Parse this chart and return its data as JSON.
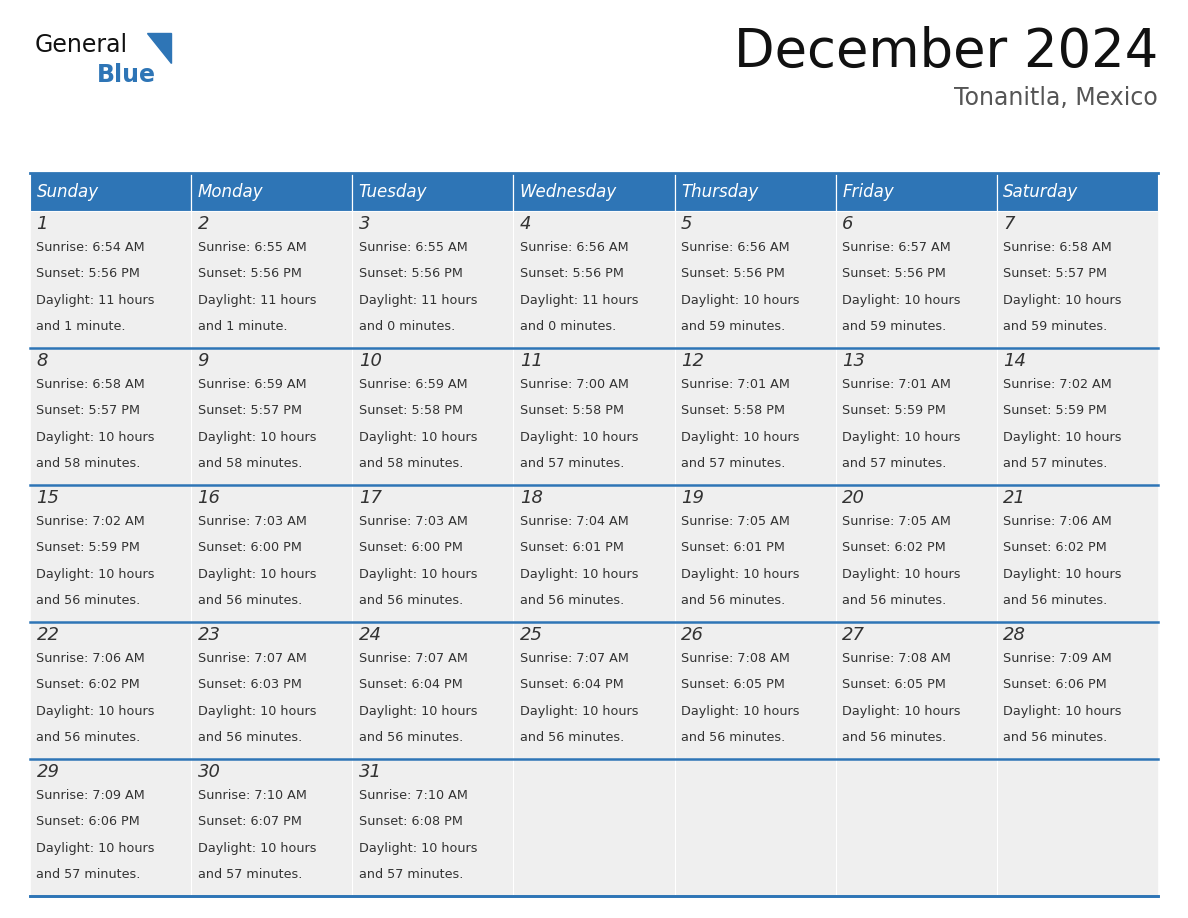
{
  "title": "December 2024",
  "subtitle": "Tonanitla, Mexico",
  "header_color": "#2E75B6",
  "header_text_color": "#FFFFFF",
  "day_names": [
    "Sunday",
    "Monday",
    "Tuesday",
    "Wednesday",
    "Thursday",
    "Friday",
    "Saturday"
  ],
  "background_color": "#FFFFFF",
  "cell_bg_color": "#EFEFEF",
  "border_color": "#2E75B6",
  "row_line_color": "#2E75B6",
  "day_num_color": "#333333",
  "text_color": "#333333",
  "calendar": [
    [
      {
        "day": 1,
        "sunrise": "6:54 AM",
        "sunset": "5:56 PM",
        "daylight_hours": 11,
        "daylight_min_text": "1 minute."
      },
      {
        "day": 2,
        "sunrise": "6:55 AM",
        "sunset": "5:56 PM",
        "daylight_hours": 11,
        "daylight_min_text": "1 minute."
      },
      {
        "day": 3,
        "sunrise": "6:55 AM",
        "sunset": "5:56 PM",
        "daylight_hours": 11,
        "daylight_min_text": "0 minutes."
      },
      {
        "day": 4,
        "sunrise": "6:56 AM",
        "sunset": "5:56 PM",
        "daylight_hours": 11,
        "daylight_min_text": "0 minutes."
      },
      {
        "day": 5,
        "sunrise": "6:56 AM",
        "sunset": "5:56 PM",
        "daylight_hours": 10,
        "daylight_min_text": "59 minutes."
      },
      {
        "day": 6,
        "sunrise": "6:57 AM",
        "sunset": "5:56 PM",
        "daylight_hours": 10,
        "daylight_min_text": "59 minutes."
      },
      {
        "day": 7,
        "sunrise": "6:58 AM",
        "sunset": "5:57 PM",
        "daylight_hours": 10,
        "daylight_min_text": "59 minutes."
      }
    ],
    [
      {
        "day": 8,
        "sunrise": "6:58 AM",
        "sunset": "5:57 PM",
        "daylight_hours": 10,
        "daylight_min_text": "58 minutes."
      },
      {
        "day": 9,
        "sunrise": "6:59 AM",
        "sunset": "5:57 PM",
        "daylight_hours": 10,
        "daylight_min_text": "58 minutes."
      },
      {
        "day": 10,
        "sunrise": "6:59 AM",
        "sunset": "5:58 PM",
        "daylight_hours": 10,
        "daylight_min_text": "58 minutes."
      },
      {
        "day": 11,
        "sunrise": "7:00 AM",
        "sunset": "5:58 PM",
        "daylight_hours": 10,
        "daylight_min_text": "57 minutes."
      },
      {
        "day": 12,
        "sunrise": "7:01 AM",
        "sunset": "5:58 PM",
        "daylight_hours": 10,
        "daylight_min_text": "57 minutes."
      },
      {
        "day": 13,
        "sunrise": "7:01 AM",
        "sunset": "5:59 PM",
        "daylight_hours": 10,
        "daylight_min_text": "57 minutes."
      },
      {
        "day": 14,
        "sunrise": "7:02 AM",
        "sunset": "5:59 PM",
        "daylight_hours": 10,
        "daylight_min_text": "57 minutes."
      }
    ],
    [
      {
        "day": 15,
        "sunrise": "7:02 AM",
        "sunset": "5:59 PM",
        "daylight_hours": 10,
        "daylight_min_text": "56 minutes."
      },
      {
        "day": 16,
        "sunrise": "7:03 AM",
        "sunset": "6:00 PM",
        "daylight_hours": 10,
        "daylight_min_text": "56 minutes."
      },
      {
        "day": 17,
        "sunrise": "7:03 AM",
        "sunset": "6:00 PM",
        "daylight_hours": 10,
        "daylight_min_text": "56 minutes."
      },
      {
        "day": 18,
        "sunrise": "7:04 AM",
        "sunset": "6:01 PM",
        "daylight_hours": 10,
        "daylight_min_text": "56 minutes."
      },
      {
        "day": 19,
        "sunrise": "7:05 AM",
        "sunset": "6:01 PM",
        "daylight_hours": 10,
        "daylight_min_text": "56 minutes."
      },
      {
        "day": 20,
        "sunrise": "7:05 AM",
        "sunset": "6:02 PM",
        "daylight_hours": 10,
        "daylight_min_text": "56 minutes."
      },
      {
        "day": 21,
        "sunrise": "7:06 AM",
        "sunset": "6:02 PM",
        "daylight_hours": 10,
        "daylight_min_text": "56 minutes."
      }
    ],
    [
      {
        "day": 22,
        "sunrise": "7:06 AM",
        "sunset": "6:02 PM",
        "daylight_hours": 10,
        "daylight_min_text": "56 minutes."
      },
      {
        "day": 23,
        "sunrise": "7:07 AM",
        "sunset": "6:03 PM",
        "daylight_hours": 10,
        "daylight_min_text": "56 minutes."
      },
      {
        "day": 24,
        "sunrise": "7:07 AM",
        "sunset": "6:04 PM",
        "daylight_hours": 10,
        "daylight_min_text": "56 minutes."
      },
      {
        "day": 25,
        "sunrise": "7:07 AM",
        "sunset": "6:04 PM",
        "daylight_hours": 10,
        "daylight_min_text": "56 minutes."
      },
      {
        "day": 26,
        "sunrise": "7:08 AM",
        "sunset": "6:05 PM",
        "daylight_hours": 10,
        "daylight_min_text": "56 minutes."
      },
      {
        "day": 27,
        "sunrise": "7:08 AM",
        "sunset": "6:05 PM",
        "daylight_hours": 10,
        "daylight_min_text": "56 minutes."
      },
      {
        "day": 28,
        "sunrise": "7:09 AM",
        "sunset": "6:06 PM",
        "daylight_hours": 10,
        "daylight_min_text": "56 minutes."
      }
    ],
    [
      {
        "day": 29,
        "sunrise": "7:09 AM",
        "sunset": "6:06 PM",
        "daylight_hours": 10,
        "daylight_min_text": "57 minutes."
      },
      {
        "day": 30,
        "sunrise": "7:10 AM",
        "sunset": "6:07 PM",
        "daylight_hours": 10,
        "daylight_min_text": "57 minutes."
      },
      {
        "day": 31,
        "sunrise": "7:10 AM",
        "sunset": "6:08 PM",
        "daylight_hours": 10,
        "daylight_min_text": "57 minutes."
      },
      null,
      null,
      null,
      null
    ]
  ],
  "title_fontsize": 38,
  "subtitle_fontsize": 17,
  "header_fontsize": 12,
  "day_num_fontsize": 13,
  "cell_fontsize": 9.2,
  "logo_general_fontsize": 17,
  "logo_blue_fontsize": 17
}
